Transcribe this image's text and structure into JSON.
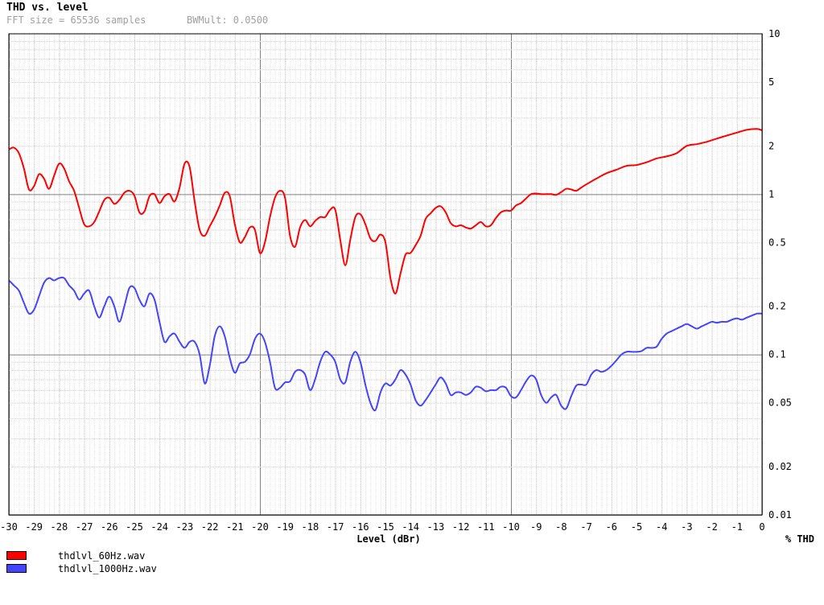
{
  "chart_data": {
    "type": "line",
    "title": "THD vs. level",
    "subtitle": {
      "fft": "FFT size = 65536 samples",
      "bw": "BWMult: 0.0500"
    },
    "xlabel": "Level (dBr)",
    "ylabel": "% THD",
    "xlim": [
      -30,
      0
    ],
    "ylim": [
      0.01,
      10
    ],
    "y_scale": "log",
    "grid": true,
    "legend_position": "bottom-left",
    "x_ticks": [
      "-30",
      "-29",
      "-28",
      "-27",
      "-26",
      "-25",
      "-24",
      "-23",
      "-22",
      "-21",
      "-20",
      "-19",
      "-18",
      "-17",
      "-16",
      "-15",
      "-14",
      "-13",
      "-12",
      "-11",
      "-10",
      "-9",
      "-8",
      "-7",
      "-6",
      "-5",
      "-4",
      "-3",
      "-2",
      "-1",
      "0"
    ],
    "y_ticks": [
      {
        "value": 10,
        "label": "10"
      },
      {
        "value": 5,
        "label": "5"
      },
      {
        "value": 2,
        "label": "2"
      },
      {
        "value": 1,
        "label": "1"
      },
      {
        "value": 0.5,
        "label": "0.5"
      },
      {
        "value": 0.2,
        "label": "0.2"
      },
      {
        "value": 0.1,
        "label": "0.1"
      },
      {
        "value": 0.05,
        "label": "0.05"
      },
      {
        "value": 0.02,
        "label": "0.02"
      },
      {
        "value": 0.01,
        "label": "0.01"
      }
    ],
    "series": [
      {
        "name": "thdlvl_60Hz.wav",
        "color": "#ff0000",
        "points": [
          [
            -30,
            1.9
          ],
          [
            -29.8,
            1.95
          ],
          [
            -29.6,
            1.8
          ],
          [
            -29.4,
            1.45
          ],
          [
            -29.2,
            1.07
          ],
          [
            -29,
            1.12
          ],
          [
            -28.8,
            1.33
          ],
          [
            -28.6,
            1.25
          ],
          [
            -28.4,
            1.08
          ],
          [
            -28.2,
            1.3
          ],
          [
            -28,
            1.55
          ],
          [
            -27.8,
            1.45
          ],
          [
            -27.6,
            1.2
          ],
          [
            -27.4,
            1.05
          ],
          [
            -27.2,
            0.82
          ],
          [
            -27,
            0.65
          ],
          [
            -26.8,
            0.63
          ],
          [
            -26.6,
            0.67
          ],
          [
            -26.4,
            0.78
          ],
          [
            -26.2,
            0.92
          ],
          [
            -26,
            0.95
          ],
          [
            -25.8,
            0.87
          ],
          [
            -25.6,
            0.92
          ],
          [
            -25.4,
            1.02
          ],
          [
            -25.2,
            1.05
          ],
          [
            -25,
            0.98
          ],
          [
            -24.8,
            0.77
          ],
          [
            -24.6,
            0.78
          ],
          [
            -24.4,
            0.97
          ],
          [
            -24.2,
            1.0
          ],
          [
            -24,
            0.88
          ],
          [
            -23.8,
            0.97
          ],
          [
            -23.6,
            1.0
          ],
          [
            -23.4,
            0.9
          ],
          [
            -23.2,
            1.1
          ],
          [
            -23,
            1.55
          ],
          [
            -22.8,
            1.48
          ],
          [
            -22.6,
            0.9
          ],
          [
            -22.4,
            0.6
          ],
          [
            -22.2,
            0.55
          ],
          [
            -22,
            0.63
          ],
          [
            -21.8,
            0.72
          ],
          [
            -21.6,
            0.85
          ],
          [
            -21.4,
            1.02
          ],
          [
            -21.2,
            0.97
          ],
          [
            -21,
            0.65
          ],
          [
            -20.8,
            0.5
          ],
          [
            -20.6,
            0.54
          ],
          [
            -20.4,
            0.62
          ],
          [
            -20.2,
            0.6
          ],
          [
            -20,
            0.43
          ],
          [
            -19.8,
            0.5
          ],
          [
            -19.6,
            0.72
          ],
          [
            -19.4,
            0.95
          ],
          [
            -19.2,
            1.05
          ],
          [
            -19,
            0.95
          ],
          [
            -18.8,
            0.55
          ],
          [
            -18.6,
            0.47
          ],
          [
            -18.4,
            0.62
          ],
          [
            -18.2,
            0.69
          ],
          [
            -18,
            0.63
          ],
          [
            -17.8,
            0.68
          ],
          [
            -17.6,
            0.72
          ],
          [
            -17.4,
            0.72
          ],
          [
            -17.2,
            0.8
          ],
          [
            -17,
            0.8
          ],
          [
            -16.8,
            0.52
          ],
          [
            -16.6,
            0.36
          ],
          [
            -16.4,
            0.52
          ],
          [
            -16.2,
            0.72
          ],
          [
            -16,
            0.75
          ],
          [
            -15.8,
            0.65
          ],
          [
            -15.6,
            0.53
          ],
          [
            -15.4,
            0.51
          ],
          [
            -15.2,
            0.56
          ],
          [
            -15,
            0.5
          ],
          [
            -14.8,
            0.3
          ],
          [
            -14.6,
            0.24
          ],
          [
            -14.4,
            0.32
          ],
          [
            -14.2,
            0.42
          ],
          [
            -14,
            0.43
          ],
          [
            -13.8,
            0.48
          ],
          [
            -13.6,
            0.55
          ],
          [
            -13.4,
            0.7
          ],
          [
            -13.2,
            0.76
          ],
          [
            -13,
            0.82
          ],
          [
            -12.8,
            0.84
          ],
          [
            -12.6,
            0.77
          ],
          [
            -12.4,
            0.66
          ],
          [
            -12.2,
            0.63
          ],
          [
            -12,
            0.64
          ],
          [
            -11.8,
            0.62
          ],
          [
            -11.6,
            0.61
          ],
          [
            -11.4,
            0.64
          ],
          [
            -11.2,
            0.67
          ],
          [
            -11,
            0.63
          ],
          [
            -10.8,
            0.64
          ],
          [
            -10.6,
            0.71
          ],
          [
            -10.4,
            0.77
          ],
          [
            -10.2,
            0.79
          ],
          [
            -10,
            0.79
          ],
          [
            -9.8,
            0.85
          ],
          [
            -9.6,
            0.88
          ],
          [
            -9.4,
            0.94
          ],
          [
            -9.2,
            1.0
          ],
          [
            -9,
            1.01
          ],
          [
            -8.8,
            1.0
          ],
          [
            -8.6,
            1.0
          ],
          [
            -8.4,
            1.0
          ],
          [
            -8.2,
            0.99
          ],
          [
            -8,
            1.03
          ],
          [
            -7.8,
            1.08
          ],
          [
            -7.6,
            1.07
          ],
          [
            -7.4,
            1.05
          ],
          [
            -7.2,
            1.1
          ],
          [
            -7,
            1.15
          ],
          [
            -6.6,
            1.25
          ],
          [
            -6.2,
            1.35
          ],
          [
            -5.8,
            1.42
          ],
          [
            -5.4,
            1.5
          ],
          [
            -5,
            1.52
          ],
          [
            -4.6,
            1.58
          ],
          [
            -4.2,
            1.67
          ],
          [
            -3.8,
            1.72
          ],
          [
            -3.4,
            1.8
          ],
          [
            -3,
            2.0
          ],
          [
            -2.6,
            2.05
          ],
          [
            -2.2,
            2.12
          ],
          [
            -1.8,
            2.22
          ],
          [
            -1.4,
            2.32
          ],
          [
            -1,
            2.42
          ],
          [
            -0.6,
            2.52
          ],
          [
            -0.2,
            2.55
          ],
          [
            0,
            2.5
          ]
        ]
      },
      {
        "name": "thdlvl_1000Hz.wav",
        "color": "#4444ff",
        "points": [
          [
            -30,
            0.29
          ],
          [
            -29.8,
            0.27
          ],
          [
            -29.6,
            0.25
          ],
          [
            -29.4,
            0.21
          ],
          [
            -29.2,
            0.18
          ],
          [
            -29,
            0.19
          ],
          [
            -28.8,
            0.23
          ],
          [
            -28.6,
            0.28
          ],
          [
            -28.4,
            0.3
          ],
          [
            -28.2,
            0.29
          ],
          [
            -28,
            0.3
          ],
          [
            -27.8,
            0.3
          ],
          [
            -27.6,
            0.27
          ],
          [
            -27.4,
            0.25
          ],
          [
            -27.2,
            0.22
          ],
          [
            -27,
            0.24
          ],
          [
            -26.8,
            0.25
          ],
          [
            -26.6,
            0.2
          ],
          [
            -26.4,
            0.17
          ],
          [
            -26.2,
            0.2
          ],
          [
            -26,
            0.23
          ],
          [
            -25.8,
            0.2
          ],
          [
            -25.6,
            0.16
          ],
          [
            -25.4,
            0.2
          ],
          [
            -25.2,
            0.26
          ],
          [
            -25,
            0.26
          ],
          [
            -24.8,
            0.22
          ],
          [
            -24.6,
            0.2
          ],
          [
            -24.4,
            0.24
          ],
          [
            -24.2,
            0.22
          ],
          [
            -24,
            0.16
          ],
          [
            -23.8,
            0.12
          ],
          [
            -23.6,
            0.13
          ],
          [
            -23.4,
            0.135
          ],
          [
            -23.2,
            0.12
          ],
          [
            -23,
            0.11
          ],
          [
            -22.8,
            0.12
          ],
          [
            -22.6,
            0.12
          ],
          [
            -22.4,
            0.1
          ],
          [
            -22.2,
            0.066
          ],
          [
            -22,
            0.085
          ],
          [
            -21.8,
            0.13
          ],
          [
            -21.6,
            0.15
          ],
          [
            -21.4,
            0.13
          ],
          [
            -21.2,
            0.095
          ],
          [
            -21,
            0.077
          ],
          [
            -20.8,
            0.088
          ],
          [
            -20.6,
            0.09
          ],
          [
            -20.4,
            0.1
          ],
          [
            -20.2,
            0.125
          ],
          [
            -20,
            0.135
          ],
          [
            -19.8,
            0.12
          ],
          [
            -19.6,
            0.09
          ],
          [
            -19.4,
            0.062
          ],
          [
            -19.2,
            0.062
          ],
          [
            -19,
            0.067
          ],
          [
            -18.8,
            0.068
          ],
          [
            -18.6,
            0.078
          ],
          [
            -18.4,
            0.08
          ],
          [
            -18.2,
            0.075
          ],
          [
            -18,
            0.06
          ],
          [
            -17.8,
            0.07
          ],
          [
            -17.6,
            0.09
          ],
          [
            -17.4,
            0.104
          ],
          [
            -17.2,
            0.1
          ],
          [
            -17,
            0.09
          ],
          [
            -16.8,
            0.07
          ],
          [
            -16.6,
            0.067
          ],
          [
            -16.4,
            0.09
          ],
          [
            -16.2,
            0.104
          ],
          [
            -16,
            0.09
          ],
          [
            -15.8,
            0.065
          ],
          [
            -15.6,
            0.05
          ],
          [
            -15.4,
            0.045
          ],
          [
            -15.2,
            0.058
          ],
          [
            -15,
            0.066
          ],
          [
            -14.8,
            0.064
          ],
          [
            -14.6,
            0.07
          ],
          [
            -14.4,
            0.08
          ],
          [
            -14.2,
            0.075
          ],
          [
            -14,
            0.065
          ],
          [
            -13.8,
            0.052
          ],
          [
            -13.6,
            0.048
          ],
          [
            -13.4,
            0.052
          ],
          [
            -13.2,
            0.058
          ],
          [
            -13,
            0.065
          ],
          [
            -12.8,
            0.072
          ],
          [
            -12.6,
            0.066
          ],
          [
            -12.4,
            0.056
          ],
          [
            -12.2,
            0.058
          ],
          [
            -12,
            0.058
          ],
          [
            -11.8,
            0.056
          ],
          [
            -11.6,
            0.058
          ],
          [
            -11.4,
            0.063
          ],
          [
            -11.2,
            0.062
          ],
          [
            -11,
            0.059
          ],
          [
            -10.8,
            0.06
          ],
          [
            -10.6,
            0.06
          ],
          [
            -10.4,
            0.063
          ],
          [
            -10.2,
            0.062
          ],
          [
            -10,
            0.055
          ],
          [
            -9.8,
            0.054
          ],
          [
            -9.6,
            0.06
          ],
          [
            -9.4,
            0.068
          ],
          [
            -9.2,
            0.074
          ],
          [
            -9,
            0.07
          ],
          [
            -8.8,
            0.056
          ],
          [
            -8.6,
            0.05
          ],
          [
            -8.4,
            0.054
          ],
          [
            -8.2,
            0.056
          ],
          [
            -8,
            0.048
          ],
          [
            -7.8,
            0.046
          ],
          [
            -7.6,
            0.055
          ],
          [
            -7.4,
            0.064
          ],
          [
            -7.2,
            0.065
          ],
          [
            -7,
            0.065
          ],
          [
            -6.8,
            0.075
          ],
          [
            -6.6,
            0.08
          ],
          [
            -6.4,
            0.078
          ],
          [
            -6.2,
            0.08
          ],
          [
            -6,
            0.085
          ],
          [
            -5.8,
            0.092
          ],
          [
            -5.6,
            0.1
          ],
          [
            -5.4,
            0.104
          ],
          [
            -5.2,
            0.104
          ],
          [
            -5,
            0.104
          ],
          [
            -4.8,
            0.105
          ],
          [
            -4.6,
            0.11
          ],
          [
            -4.4,
            0.11
          ],
          [
            -4.2,
            0.112
          ],
          [
            -4,
            0.125
          ],
          [
            -3.8,
            0.135
          ],
          [
            -3.6,
            0.14
          ],
          [
            -3.4,
            0.145
          ],
          [
            -3.2,
            0.15
          ],
          [
            -3,
            0.155
          ],
          [
            -2.8,
            0.15
          ],
          [
            -2.6,
            0.145
          ],
          [
            -2.4,
            0.15
          ],
          [
            -2.2,
            0.155
          ],
          [
            -2,
            0.16
          ],
          [
            -1.8,
            0.158
          ],
          [
            -1.6,
            0.16
          ],
          [
            -1.4,
            0.16
          ],
          [
            -1.2,
            0.165
          ],
          [
            -1,
            0.168
          ],
          [
            -0.8,
            0.165
          ],
          [
            -0.6,
            0.17
          ],
          [
            -0.4,
            0.175
          ],
          [
            -0.2,
            0.18
          ],
          [
            0,
            0.18
          ]
        ]
      }
    ]
  }
}
